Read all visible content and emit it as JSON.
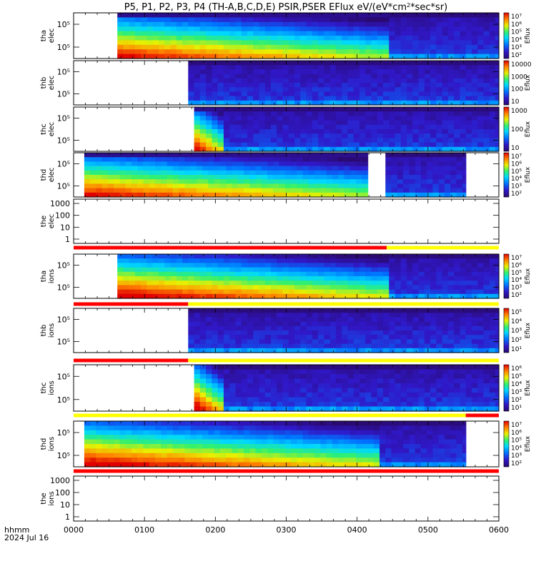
{
  "title": "P5, P1, P2, P3, P4 (TH-A,B,C,D,E) PSIR,PSER EFlux eV/(eV*cm",
  "title_sup": "2",
  "title_tail": "*sec*sr)",
  "footer": {
    "time_label": "hhmm",
    "date": "2024 Jul 16"
  },
  "colors": {
    "fill_missing": "#ffffff",
    "frame": "#000000",
    "mode_red": "#ff0000",
    "mode_yellow": "#ffff00"
  },
  "chart_data": {
    "type": "heatmap",
    "x_ticks": [
      "0000",
      "0100",
      "0200",
      "0300",
      "0400",
      "0500",
      "0600"
    ],
    "x_range_hhmm": [
      "0000",
      "0600"
    ],
    "colorbar_label": "Eflux",
    "panels": [
      {
        "probe": "tha",
        "species": "elec",
        "y_ticks": [
          "10⁵",
          "10⁵"
        ],
        "cbar_ticks": [
          "10⁷",
          "10⁶",
          "10⁵",
          "10⁴",
          "10³",
          "10²"
        ],
        "data_start_hhmm": "0037",
        "data_gap": [],
        "burst_until_hhmm": "0426"
      },
      {
        "probe": "thb",
        "species": "elec",
        "y_ticks": [
          "10⁵",
          "10⁵"
        ],
        "cbar_ticks": [
          "10000",
          "1000",
          "100",
          "10"
        ],
        "data_start_hhmm": "0137",
        "data_gap": [],
        "burst_until_hhmm": null
      },
      {
        "probe": "thc",
        "species": "elec",
        "y_ticks": [
          "10⁵",
          "10⁵"
        ],
        "cbar_ticks": [
          "1000",
          "100",
          "10"
        ],
        "data_start_hhmm": "0142",
        "data_gap": [],
        "burst_until_hhmm": "0207"
      },
      {
        "probe": "thd",
        "species": "elec",
        "y_ticks": [
          "10⁵",
          "10⁵"
        ],
        "cbar_ticks": [
          "10⁷",
          "10⁶",
          "10⁵",
          "10⁴",
          "10³",
          "10²"
        ],
        "data_start_hhmm": "0009",
        "data_gap": [
          "0409",
          "0420"
        ],
        "data_end_hhmm": "0532",
        "burst_until_hhmm": "0409"
      },
      {
        "probe": "the",
        "species": "elec",
        "y_ticks": [
          "1000",
          "100",
          "10",
          "1"
        ],
        "cbar_ticks": [],
        "data_start_hhmm": null,
        "data_gap": [],
        "burst_until_hhmm": null
      },
      {
        "probe": "tha",
        "species": "ions",
        "y_ticks": [
          "10⁵",
          "10⁵"
        ],
        "cbar_ticks": [
          "10⁷",
          "10⁶",
          "10⁵",
          "10⁴",
          "10³",
          "10²"
        ],
        "data_start_hhmm": "0037",
        "data_gap": [],
        "burst_until_hhmm": "0426"
      },
      {
        "probe": "thb",
        "species": "ions",
        "y_ticks": [
          "10⁵",
          "10⁵"
        ],
        "cbar_ticks": [
          "10⁵",
          "10⁴",
          "10³",
          "10²",
          "10¹"
        ],
        "data_start_hhmm": "0137",
        "data_gap": [],
        "burst_until_hhmm": null
      },
      {
        "probe": "thc",
        "species": "ions",
        "y_ticks": [
          "10⁵",
          "10⁵"
        ],
        "cbar_ticks": [
          "10⁶",
          "10⁵",
          "10⁴",
          "10³",
          "10²",
          "10¹"
        ],
        "data_start_hhmm": "0142",
        "data_gap": [],
        "burst_until_hhmm": "0205"
      },
      {
        "probe": "thd",
        "species": "ions",
        "y_ticks": [
          "10⁵",
          "10⁵"
        ],
        "cbar_ticks": [
          "10⁷",
          "10⁶",
          "10⁵",
          "10⁴",
          "10³",
          "10²"
        ],
        "data_start_hhmm": "0009",
        "data_gap": [],
        "data_end_hhmm": "0532",
        "burst_until_hhmm": "0415"
      },
      {
        "probe": "the",
        "species": "ions",
        "y_ticks": [
          "1000",
          "100",
          "10",
          "1"
        ],
        "cbar_ticks": [],
        "data_start_hhmm": null,
        "data_gap": [],
        "burst_until_hhmm": null
      }
    ],
    "mode_bars": [
      {
        "segments": [
          {
            "color": "red",
            "from": "0000",
            "to": "0425"
          },
          {
            "color": "yellow",
            "from": "0425",
            "to": "0600"
          }
        ]
      },
      {
        "segments": [
          {
            "color": "red",
            "from": "0000",
            "to": "0137"
          },
          {
            "color": "yellow",
            "from": "0137",
            "to": "0600"
          }
        ]
      },
      {
        "segments": [
          {
            "color": "red",
            "from": "0000",
            "to": "0137"
          },
          {
            "color": "yellow",
            "from": "0137",
            "to": "0600"
          }
        ]
      },
      {
        "segments": [
          {
            "color": "yellow",
            "from": "0000",
            "to": "0532"
          },
          {
            "color": "red",
            "from": "0532",
            "to": "0600"
          }
        ]
      },
      {
        "segments": [
          {
            "color": "red",
            "from": "0000",
            "to": "0600"
          }
        ]
      }
    ]
  }
}
